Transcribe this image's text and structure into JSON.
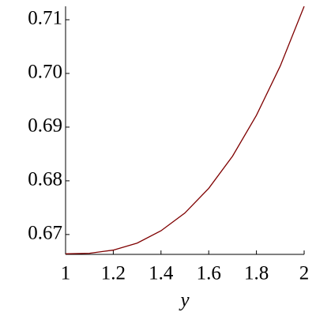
{
  "chart_data": {
    "type": "line",
    "x_label": "y",
    "x": [
      1.0,
      1.1,
      1.2,
      1.3,
      1.4,
      1.5,
      1.6,
      1.7,
      1.8,
      1.9,
      2.0
    ],
    "series": [
      {
        "color": "#7f0000",
        "values": [
          0.6664,
          0.6665,
          0.6671,
          0.6684,
          0.6707,
          0.674,
          0.6786,
          0.6846,
          0.6922,
          0.7014,
          0.7125
        ]
      }
    ],
    "xlim": [
      1,
      2
    ],
    "ylim": [
      0.6663,
      0.7125
    ],
    "xticks": [
      {
        "value": 1,
        "label": "1"
      },
      1.2,
      1.4,
      1.6,
      1.8,
      {
        "value": 2,
        "label": "2"
      }
    ],
    "yticks": [
      0.67,
      {
        "value": 0.68,
        "label": "0.68"
      },
      0.69,
      {
        "value": 0.7,
        "label": "0.70"
      },
      0.71
    ]
  }
}
